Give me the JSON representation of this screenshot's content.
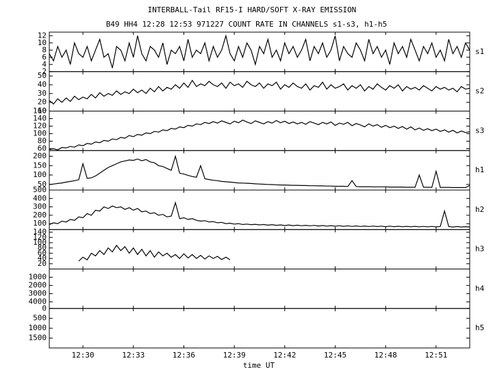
{
  "chart_data": {
    "type": "line",
    "title": "INTERBALL-Tail RF15-I HARD/SOFT X-RAY EMISSION",
    "subtitle": "B49 HH4 12:28 12:53 971227  COUNT RATE IN CHANNELS s1-s3, h1-h5",
    "xlabel": "time UT",
    "xlim": [
      28,
      53
    ],
    "xticks": [
      {
        "value": 30,
        "label": "12:30"
      },
      {
        "value": 33,
        "label": "12:33"
      },
      {
        "value": 36,
        "label": "12:36"
      },
      {
        "value": 39,
        "label": "12:39"
      },
      {
        "value": 42,
        "label": "12:42"
      },
      {
        "value": 45,
        "label": "12:45"
      },
      {
        "value": 48,
        "label": "12:48"
      },
      {
        "value": 51,
        "label": "12:51"
      }
    ],
    "color": "#000000",
    "x": [
      28,
      28.25,
      28.5,
      28.75,
      29,
      29.25,
      29.5,
      29.75,
      30,
      30.25,
      30.5,
      30.75,
      31,
      31.25,
      31.5,
      31.75,
      32,
      32.25,
      32.5,
      32.75,
      33,
      33.25,
      33.5,
      33.75,
      34,
      34.25,
      34.5,
      34.75,
      35,
      35.25,
      35.5,
      35.75,
      36,
      36.25,
      36.5,
      36.75,
      37,
      37.25,
      37.5,
      37.75,
      38,
      38.25,
      38.5,
      38.75,
      39,
      39.25,
      39.5,
      39.75,
      40,
      40.25,
      40.5,
      40.75,
      41,
      41.25,
      41.5,
      41.75,
      42,
      42.25,
      42.5,
      42.75,
      43,
      43.25,
      43.5,
      43.75,
      44,
      44.25,
      44.5,
      44.75,
      45,
      45.25,
      45.5,
      45.75,
      46,
      46.25,
      46.5,
      46.75,
      47,
      47.25,
      47.5,
      47.75,
      48,
      48.25,
      48.5,
      48.75,
      49,
      49.25,
      49.5,
      49.75,
      50,
      50.25,
      50.5,
      50.75,
      51,
      51.25,
      51.5,
      51.75,
      52,
      52.25,
      52.5,
      52.75,
      53
    ],
    "panels": [
      {
        "name": "s1",
        "ylim": [
          2,
          13
        ],
        "yticks": [
          2,
          4,
          6,
          8,
          10,
          12
        ],
        "values": [
          7,
          5,
          9,
          6,
          8,
          4,
          10,
          7,
          6,
          9,
          5,
          8,
          11,
          6,
          7,
          3,
          9,
          8,
          5,
          10,
          6,
          12,
          7,
          5,
          9,
          8,
          6,
          10,
          4,
          8,
          7,
          9,
          5,
          11,
          6,
          8,
          7,
          10,
          5,
          9,
          6,
          8,
          12,
          7,
          5,
          9,
          6,
          10,
          8,
          4,
          9,
          7,
          11,
          6,
          8,
          5,
          10,
          7,
          9,
          6,
          8,
          11,
          5,
          9,
          7,
          10,
          6,
          8,
          12,
          5,
          9,
          7,
          6,
          10,
          8,
          5,
          11,
          7,
          9,
          6,
          8,
          4,
          10,
          7,
          9,
          6,
          11,
          8,
          5,
          9,
          7,
          10,
          6,
          8,
          5,
          11,
          7,
          9,
          6,
          10,
          8
        ]
      },
      {
        "name": "s2",
        "ylim": [
          10,
          55
        ],
        "yticks": [
          10,
          20,
          30,
          40,
          50
        ],
        "values": [
          22,
          18,
          24,
          20,
          25,
          21,
          27,
          23,
          26,
          24,
          29,
          25,
          31,
          27,
          30,
          28,
          33,
          29,
          32,
          30,
          35,
          31,
          34,
          30,
          36,
          32,
          38,
          33,
          37,
          35,
          40,
          36,
          42,
          37,
          45,
          38,
          41,
          39,
          44,
          40,
          38,
          42,
          36,
          43,
          39,
          41,
          37,
          44,
          40,
          38,
          42,
          36,
          41,
          39,
          43,
          35,
          40,
          37,
          42,
          38,
          36,
          41,
          34,
          39,
          37,
          43,
          35,
          40,
          36,
          38,
          41,
          34,
          39,
          36,
          40,
          33,
          38,
          35,
          41,
          37,
          34,
          39,
          36,
          40,
          33,
          38,
          35,
          37,
          34,
          39,
          36,
          33,
          38,
          35,
          37,
          34,
          36,
          32,
          38,
          35,
          36
        ]
      },
      {
        "name": "s3",
        "ylim": [
          55,
          160
        ],
        "yticks": [
          60,
          80,
          100,
          120,
          140,
          160
        ],
        "values": [
          58,
          60,
          57,
          63,
          62,
          66,
          64,
          70,
          68,
          74,
          72,
          78,
          76,
          82,
          80,
          86,
          84,
          90,
          88,
          95,
          92,
          98,
          96,
          102,
          100,
          106,
          104,
          110,
          108,
          114,
          112,
          118,
          116,
          122,
          120,
          126,
          124,
          130,
          127,
          132,
          128,
          134,
          130,
          126,
          133,
          129,
          136,
          131,
          127,
          134,
          130,
          126,
          132,
          128,
          135,
          129,
          133,
          127,
          131,
          126,
          130,
          125,
          132,
          128,
          124,
          130,
          126,
          131,
          122,
          128,
          125,
          130,
          121,
          127,
          123,
          118,
          126,
          120,
          124,
          117,
          122,
          116,
          120,
          114,
          119,
          112,
          118,
          110,
          115,
          109,
          113,
          108,
          112,
          106,
          110,
          104,
          109,
          102,
          107,
          103,
          105
        ]
      },
      {
        "name": "h1",
        "ylim": [
          20,
          230
        ],
        "yticks": [
          50,
          100,
          150,
          200
        ],
        "values": [
          50,
          52,
          55,
          58,
          62,
          66,
          70,
          75,
          160,
          82,
          85,
          95,
          110,
          125,
          140,
          150,
          160,
          170,
          175,
          180,
          178,
          185,
          176,
          182,
          170,
          165,
          150,
          145,
          135,
          125,
          200,
          110,
          105,
          98,
          92,
          88,
          150,
          80,
          76,
          72,
          70,
          66,
          64,
          62,
          60,
          58,
          57,
          56,
          55,
          53,
          52,
          51,
          50,
          49,
          48,
          47,
          47,
          46,
          45,
          45,
          44,
          44,
          43,
          43,
          42,
          42,
          41,
          41,
          40,
          40,
          40,
          39,
          70,
          39,
          38,
          38,
          38,
          37,
          37,
          37,
          37,
          36,
          36,
          36,
          36,
          35,
          35,
          35,
          100,
          35,
          35,
          34,
          120,
          34,
          34,
          34,
          33,
          33,
          33,
          33,
          45
        ]
      },
      {
        "name": "h2",
        "ylim": [
          30,
          500
        ],
        "yticks": [
          100,
          200,
          300,
          400,
          500
        ],
        "values": [
          90,
          110,
          100,
          130,
          120,
          150,
          140,
          180,
          170,
          220,
          200,
          260,
          250,
          300,
          280,
          310,
          290,
          300,
          270,
          290,
          260,
          280,
          240,
          250,
          220,
          230,
          200,
          210,
          180,
          190,
          350,
          160,
          170,
          150,
          160,
          140,
          130,
          135,
          120,
          125,
          110,
          115,
          100,
          105,
          95,
          100,
          90,
          95,
          88,
          92,
          85,
          90,
          82,
          88,
          80,
          85,
          78,
          84,
          76,
          82,
          75,
          80,
          74,
          79,
          72,
          78,
          70,
          76,
          70,
          75,
          68,
          74,
          67,
          73,
          66,
          72,
          66,
          71,
          65,
          70,
          64,
          70,
          64,
          69,
          63,
          68,
          63,
          68,
          62,
          67,
          62,
          67,
          61,
          66,
          250,
          66,
          60,
          65,
          60,
          64,
          60
        ]
      },
      {
        "name": "h3",
        "ylim": [
          0,
          150
        ],
        "yticks": [
          20,
          40,
          60,
          80,
          100,
          120,
          140
        ],
        "values": [
          null,
          null,
          null,
          null,
          null,
          null,
          null,
          30,
          45,
          35,
          60,
          50,
          70,
          55,
          80,
          65,
          90,
          70,
          85,
          60,
          80,
          55,
          75,
          50,
          70,
          45,
          65,
          50,
          60,
          45,
          55,
          40,
          58,
          42,
          55,
          40,
          52,
          38,
          50,
          40,
          48,
          36,
          45,
          35,
          null,
          null,
          null,
          null,
          null,
          null,
          null,
          null,
          null,
          null,
          null,
          null,
          null,
          null,
          null,
          null,
          null,
          null,
          null,
          null,
          null,
          null,
          null,
          null,
          null,
          null,
          null,
          null,
          null,
          null,
          null,
          null,
          null,
          null,
          null,
          null,
          null,
          null,
          null,
          null,
          null,
          null,
          null,
          null,
          null,
          null,
          null,
          null,
          null,
          null,
          null,
          null,
          null,
          null,
          null,
          null,
          null
        ]
      },
      {
        "name": "h4",
        "ylim": [
          4800,
          0
        ],
        "yticks": [
          1000,
          2000,
          3000,
          4000
        ]
      },
      {
        "name": "h5",
        "ylim": [
          2000,
          0
        ],
        "yticks": [
          0,
          500,
          1000,
          1500
        ]
      }
    ]
  }
}
